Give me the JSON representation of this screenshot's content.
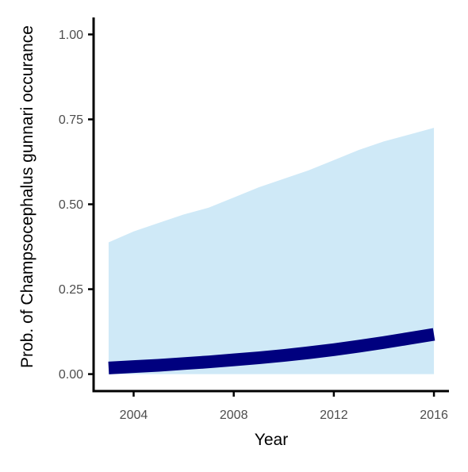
{
  "chart_data": {
    "type": "line",
    "title": "",
    "xlabel": "Year",
    "ylabel": "Prob. of  Champsocephalus gunnari  occurance",
    "xlim": [
      2002.4,
      2016.6
    ],
    "ylim": [
      -0.05,
      1.05
    ],
    "x_ticks": [
      2004,
      2008,
      2012,
      2016
    ],
    "x_tick_labels": [
      "2004",
      "2008",
      "2012",
      "2016"
    ],
    "y_ticks": [
      0.0,
      0.25,
      0.5,
      0.75,
      1.0
    ],
    "y_tick_labels": [
      "0.00",
      "0.25",
      "0.50",
      "0.75",
      "1.00"
    ],
    "grid": false,
    "legend": "none",
    "series": [
      {
        "x": [
          2003,
          2004,
          2005,
          2006,
          2007,
          2008,
          2009,
          2010,
          2011,
          2012,
          2013,
          2014,
          2015,
          2016
        ],
        "values": [
          0.018,
          0.022,
          0.026,
          0.031,
          0.036,
          0.042,
          0.048,
          0.055,
          0.063,
          0.072,
          0.082,
          0.093,
          0.105,
          0.117
        ],
        "lower": [
          0.0,
          0.0,
          0.0,
          0.0,
          0.0,
          0.0,
          0.0,
          0.0,
          0.0,
          0.0,
          0.0,
          0.0,
          0.0,
          0.0
        ],
        "upper": [
          0.388,
          0.42,
          0.445,
          0.47,
          0.49,
          0.52,
          0.55,
          0.575,
          0.6,
          0.63,
          0.66,
          0.685,
          0.705,
          0.725
        ]
      }
    ],
    "colors": {
      "line": "#00007f",
      "ribbon": "#cfe9f7",
      "axis": "#000000",
      "tick_text": "#4d4d4d"
    }
  }
}
